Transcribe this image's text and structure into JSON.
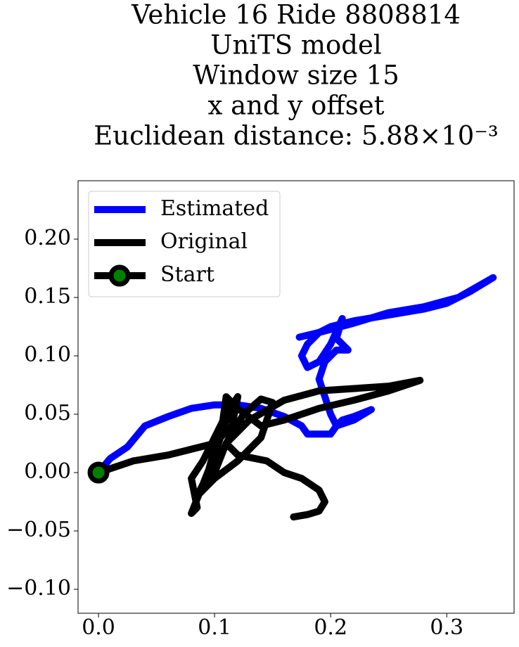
{
  "chart_data": {
    "type": "line",
    "title": [
      "Vehicle 16 Ride 8808814",
      "UniTS model",
      "Window size 15",
      "x and y offset",
      "Euclidean distance: 5.88×10⁻³"
    ],
    "series": [
      {
        "name": "Estimated",
        "color": "#0000ff",
        "x": [
          0,
          0.01,
          0.025,
          0.04,
          0.06,
          0.08,
          0.1,
          0.12,
          0.14,
          0.16,
          0.175,
          0.18,
          0.2,
          0.205,
          0.21,
          0.22,
          0.235,
          0.22,
          0.205,
          0.2,
          0.195,
          0.19,
          0.195,
          0.205,
          0.215,
          0.205,
          0.21,
          0.2,
          0.19,
          0.18,
          0.175,
          0.18,
          0.19,
          0.2,
          0.22,
          0.25,
          0.28,
          0.3,
          0.32,
          0.34,
          0.31,
          0.28,
          0.25,
          0.22,
          0.19,
          0.173
        ],
        "y": [
          0,
          0.012,
          0.022,
          0.04,
          0.048,
          0.055,
          0.058,
          0.058,
          0.055,
          0.048,
          0.04,
          0.033,
          0.033,
          0.04,
          0.045,
          0.048,
          0.054,
          0.045,
          0.04,
          0.05,
          0.065,
          0.08,
          0.095,
          0.105,
          0.105,
          0.115,
          0.132,
          0.11,
          0.095,
          0.09,
          0.1,
          0.11,
          0.12,
          0.125,
          0.13,
          0.135,
          0.14,
          0.145,
          0.155,
          0.167,
          0.15,
          0.142,
          0.137,
          0.128,
          0.12,
          0.116
        ]
      },
      {
        "name": "Original",
        "color": "#000000",
        "x": [
          0,
          0.03,
          0.06,
          0.08,
          0.1,
          0.115,
          0.12,
          0.11,
          0.1,
          0.09,
          0.08,
          0.085,
          0.08,
          0.09,
          0.1,
          0.115,
          0.11,
          0.105,
          0.095,
          0.085,
          0.1,
          0.12,
          0.14,
          0.15,
          0.14,
          0.125,
          0.11,
          0.1,
          0.09,
          0.1,
          0.11,
          0.12,
          0.14,
          0.16,
          0.19,
          0.22,
          0.25,
          0.277,
          0.25,
          0.22,
          0.19,
          0.16,
          0.13,
          0.11,
          0.12,
          0.145,
          0.16,
          0.175,
          0.19,
          0.195,
          0.19,
          0.18,
          0.168
        ],
        "y": [
          0,
          0.01,
          0.015,
          0.02,
          0.025,
          0.04,
          0.065,
          0.05,
          0.03,
          0.01,
          -0.005,
          -0.03,
          -0.035,
          -0.01,
          0.015,
          0.06,
          0.065,
          0.03,
          0.0,
          -0.02,
          -0.005,
          0.01,
          0.03,
          0.06,
          0.063,
          0.05,
          0.025,
          0.0,
          -0.015,
          0.02,
          0.045,
          0.055,
          0.04,
          0.045,
          0.055,
          0.062,
          0.07,
          0.079,
          0.074,
          0.072,
          0.07,
          0.062,
          0.045,
          0.025,
          0.015,
          0.01,
          0.0,
          -0.005,
          -0.015,
          -0.025,
          -0.033,
          -0.036,
          -0.038
        ]
      },
      {
        "name": "Start",
        "color": "#000000",
        "marker": true,
        "marker_color": "#008000",
        "x": [
          0
        ],
        "y": [
          0
        ]
      }
    ],
    "xlim": [
      -0.0176,
      0.358
    ],
    "ylim": [
      -0.1205,
      0.25
    ],
    "xticks": [
      {
        "value": 0,
        "label": "0.0"
      },
      {
        "value": 0.1,
        "label": "0.1"
      },
      {
        "value": 0.2,
        "label": "0.2"
      },
      {
        "value": 0.3,
        "label": "0.3"
      }
    ],
    "yticks": [
      {
        "value": -0.1,
        "label": "−0.10"
      },
      {
        "value": -0.05,
        "label": "−0.05"
      },
      {
        "value": 0,
        "label": "0.00"
      },
      {
        "value": 0.05,
        "label": "0.05"
      },
      {
        "value": 0.1,
        "label": "0.10"
      },
      {
        "value": 0.15,
        "label": "0.15"
      },
      {
        "value": 0.2,
        "label": "0.20"
      }
    ],
    "legend": "upper left",
    "grid": false
  }
}
